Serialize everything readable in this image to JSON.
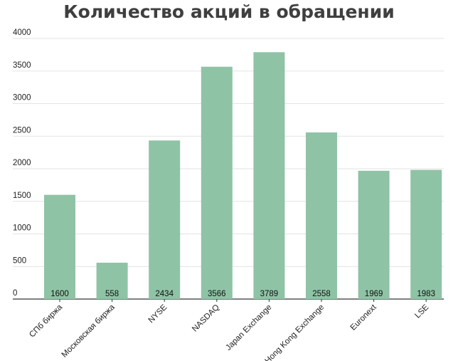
{
  "chart_data": {
    "type": "bar",
    "title": "Количество акций в обращении",
    "xlabel": "",
    "ylabel": "",
    "categories": [
      "СПб биржа",
      "Московская биржа",
      "NYSE",
      "NASDAQ",
      "Japan Exchange",
      "Hong Kong Exchange",
      "Euronext",
      "LSE"
    ],
    "values": [
      1600,
      558,
      2434,
      3566,
      3789,
      2558,
      1969,
      1983
    ],
    "value_labels": [
      "1600",
      "558",
      "2434",
      "3566",
      "3789",
      "2558",
      "1969",
      "1983"
    ],
    "ylim": [
      0,
      4000
    ],
    "yticks": [
      0,
      500,
      1000,
      1500,
      2000,
      2500,
      3000,
      3500,
      4000
    ],
    "ytick_labels": [
      "0",
      "500",
      "1000",
      "1500",
      "2000",
      "2500",
      "3000",
      "3500",
      "4000"
    ],
    "grid": true,
    "legend": "none",
    "colors": {
      "bar": "#8fc3a6",
      "grid": "#e3e3e3",
      "axis": "#333333"
    }
  }
}
